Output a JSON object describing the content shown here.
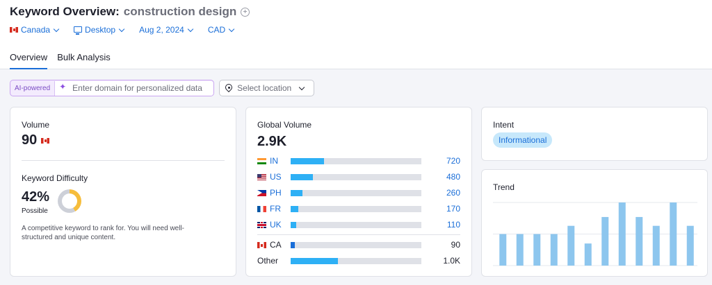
{
  "header": {
    "title": "Keyword Overview:",
    "keyword": "construction design"
  },
  "filters": {
    "country": "Canada",
    "device": "Desktop",
    "date": "Aug 2, 2024",
    "currency": "CAD"
  },
  "tabs": [
    {
      "label": "Overview",
      "active": true
    },
    {
      "label": "Bulk Analysis",
      "active": false
    }
  ],
  "ai": {
    "tag": "AI-powered",
    "domain_placeholder": "Enter domain for personalized data",
    "location_placeholder": "Select location"
  },
  "volume": {
    "label": "Volume",
    "value": "90"
  },
  "difficulty": {
    "label": "Keyword Difficulty",
    "value": "42%",
    "level": "Possible",
    "percent": 42,
    "description_line1": "A competitive keyword to rank for. You will need well-",
    "description_line2": "structured and unique content."
  },
  "global_volume": {
    "label": "Global Volume",
    "value": "2.9K",
    "countries": [
      {
        "code": "IN",
        "flag": "flag-in",
        "value": "720",
        "share": 0.255
      },
      {
        "code": "US",
        "flag": "flag-us",
        "value": "480",
        "share": 0.17
      },
      {
        "code": "PH",
        "flag": "flag-ph",
        "value": "260",
        "share": 0.09
      },
      {
        "code": "FR",
        "flag": "flag-fr",
        "value": "170",
        "share": 0.06
      },
      {
        "code": "UK",
        "flag": "flag-uk",
        "value": "110",
        "share": 0.04
      }
    ],
    "local": {
      "code": "CA",
      "flag": "flag-ca2",
      "value": "90",
      "share": 0.032
    },
    "other": {
      "label": "Other",
      "value": "1.0K",
      "share": 0.36
    }
  },
  "intent": {
    "label": "Intent",
    "value": "Informational"
  },
  "trend": {
    "label": "Trend",
    "bar_color": "#8dc6ee",
    "values": [
      0.5,
      0.5,
      0.5,
      0.5,
      0.63,
      0.35,
      0.77,
      1.0,
      0.77,
      0.63,
      1.0,
      0.63
    ]
  }
}
